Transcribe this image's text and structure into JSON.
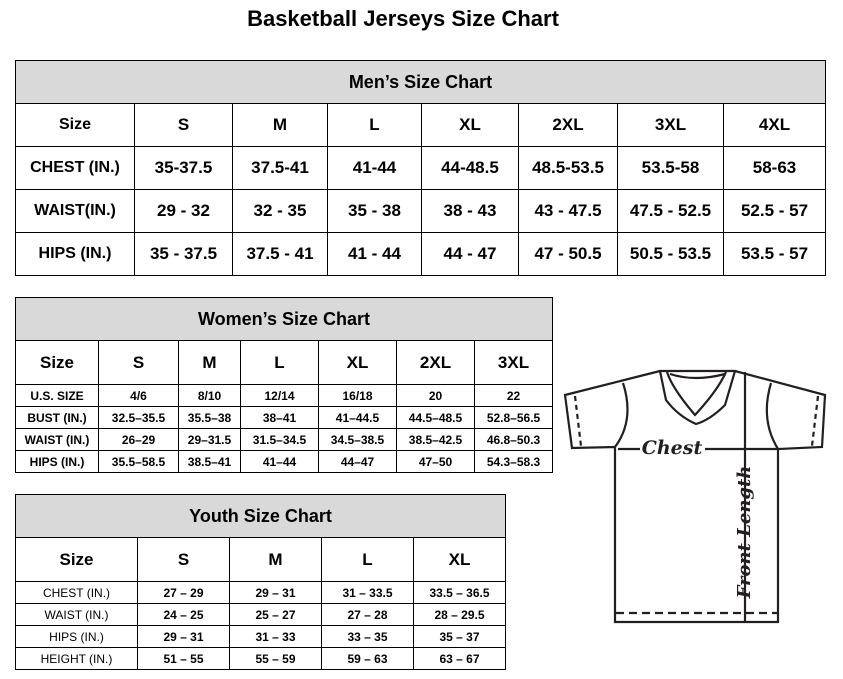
{
  "title": "Basketball Jerseys Size Chart",
  "men": {
    "caption": "Men’s Size Chart",
    "header": [
      "Size",
      "S",
      "M",
      "L",
      "XL",
      "2XL",
      "3XL",
      "4XL"
    ],
    "rows": [
      [
        "CHEST (IN.)",
        "35-37.5",
        "37.5-41",
        "41-44",
        "44-48.5",
        "48.5-53.5",
        "53.5-58",
        "58-63"
      ],
      [
        "WAIST(IN.)",
        "29 - 32",
        "32 - 35",
        "35 - 38",
        "38 - 43",
        "43 - 47.5",
        "47.5 - 52.5",
        "52.5 - 57"
      ],
      [
        "HIPS (IN.)",
        "35 - 37.5",
        "37.5 - 41",
        "41 - 44",
        "44 - 47",
        "47 - 50.5",
        "50.5 - 53.5",
        "53.5 - 57"
      ]
    ]
  },
  "women": {
    "caption": "Women’s Size Chart",
    "header": [
      "Size",
      "S",
      "M",
      "L",
      "XL",
      "2XL",
      "3XL"
    ],
    "rows": [
      [
        "U.S.  SIZE",
        "4/6",
        "8/10",
        "12/14",
        "16/18",
        "20",
        "22"
      ],
      [
        "BUST  (IN.)",
        "32.5–35.5",
        "35.5–38",
        "38–41",
        "41–44.5",
        "44.5–48.5",
        "52.8–56.5"
      ],
      [
        "WAIST  (IN.)",
        "26–29",
        "29–31.5",
        "31.5–34.5",
        "34.5–38.5",
        "38.5–42.5",
        "46.8–50.3"
      ],
      [
        "HIPS  (IN.)",
        "35.5–58.5",
        "38.5–41",
        "41–44",
        "44–47",
        "47–50",
        "54.3–58.3"
      ]
    ]
  },
  "youth": {
    "caption": "Youth Size Chart",
    "header": [
      "Size",
      "S",
      "M",
      "L",
      "XL"
    ],
    "rows": [
      [
        "CHEST  (IN.)",
        "27  –  29",
        "29  –  31",
        "31  –  33.5",
        "33.5  –  36.5"
      ],
      [
        "WAIST  (IN.)",
        "24  –  25",
        "25  –  27",
        "27  –  28",
        "28  –  29.5"
      ],
      [
        "HIPS  (IN.)",
        "29  –  31",
        "31  –  33",
        "33  –  35",
        "35  –  37"
      ],
      [
        "HEIGHT  (IN.)",
        "51  –  55",
        "55  –  59",
        "59  –  63",
        "63  –  67"
      ]
    ]
  },
  "jersey": {
    "chest_label": "Chest",
    "length_label": "Front Length"
  }
}
